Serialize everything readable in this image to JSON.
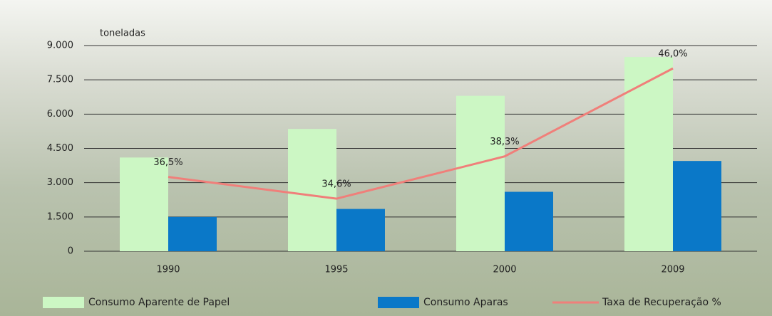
{
  "chart_data": {
    "type": "bar",
    "ylabel": "toneladas",
    "categories": [
      "1990",
      "1995",
      "2000",
      "2009"
    ],
    "series": [
      {
        "name": "Consumo Aparente de Papel",
        "color": "#ccf7c4",
        "values": [
          4100,
          5350,
          6800,
          8500
        ]
      },
      {
        "name": "Consumo Aparas",
        "color": "#0a78c8",
        "values": [
          1500,
          1850,
          2600,
          3950
        ]
      },
      {
        "name": "Taxa de Recuperação %",
        "color": "#f07f7a",
        "type": "line",
        "axis": "y2",
        "values": [
          36.5,
          34.6,
          38.3,
          46.0
        ],
        "value_labels": [
          "36,5%",
          "34,6%",
          "38,3%",
          "46,0%"
        ]
      }
    ],
    "ylim": [
      0,
      9000
    ],
    "yticks": [
      0,
      {
        "value": 1500,
        "label": "1.500"
      },
      {
        "value": 3000,
        "label": "3.000"
      },
      {
        "value": 4500,
        "label": "4.500"
      },
      {
        "value": 6000,
        "label": "6.000"
      },
      {
        "value": 7500,
        "label": "7.500"
      },
      {
        "value": 9000,
        "label": "9.000"
      }
    ],
    "y2lim": [
      30,
      48
    ],
    "grid": true,
    "legend": "bottom"
  }
}
